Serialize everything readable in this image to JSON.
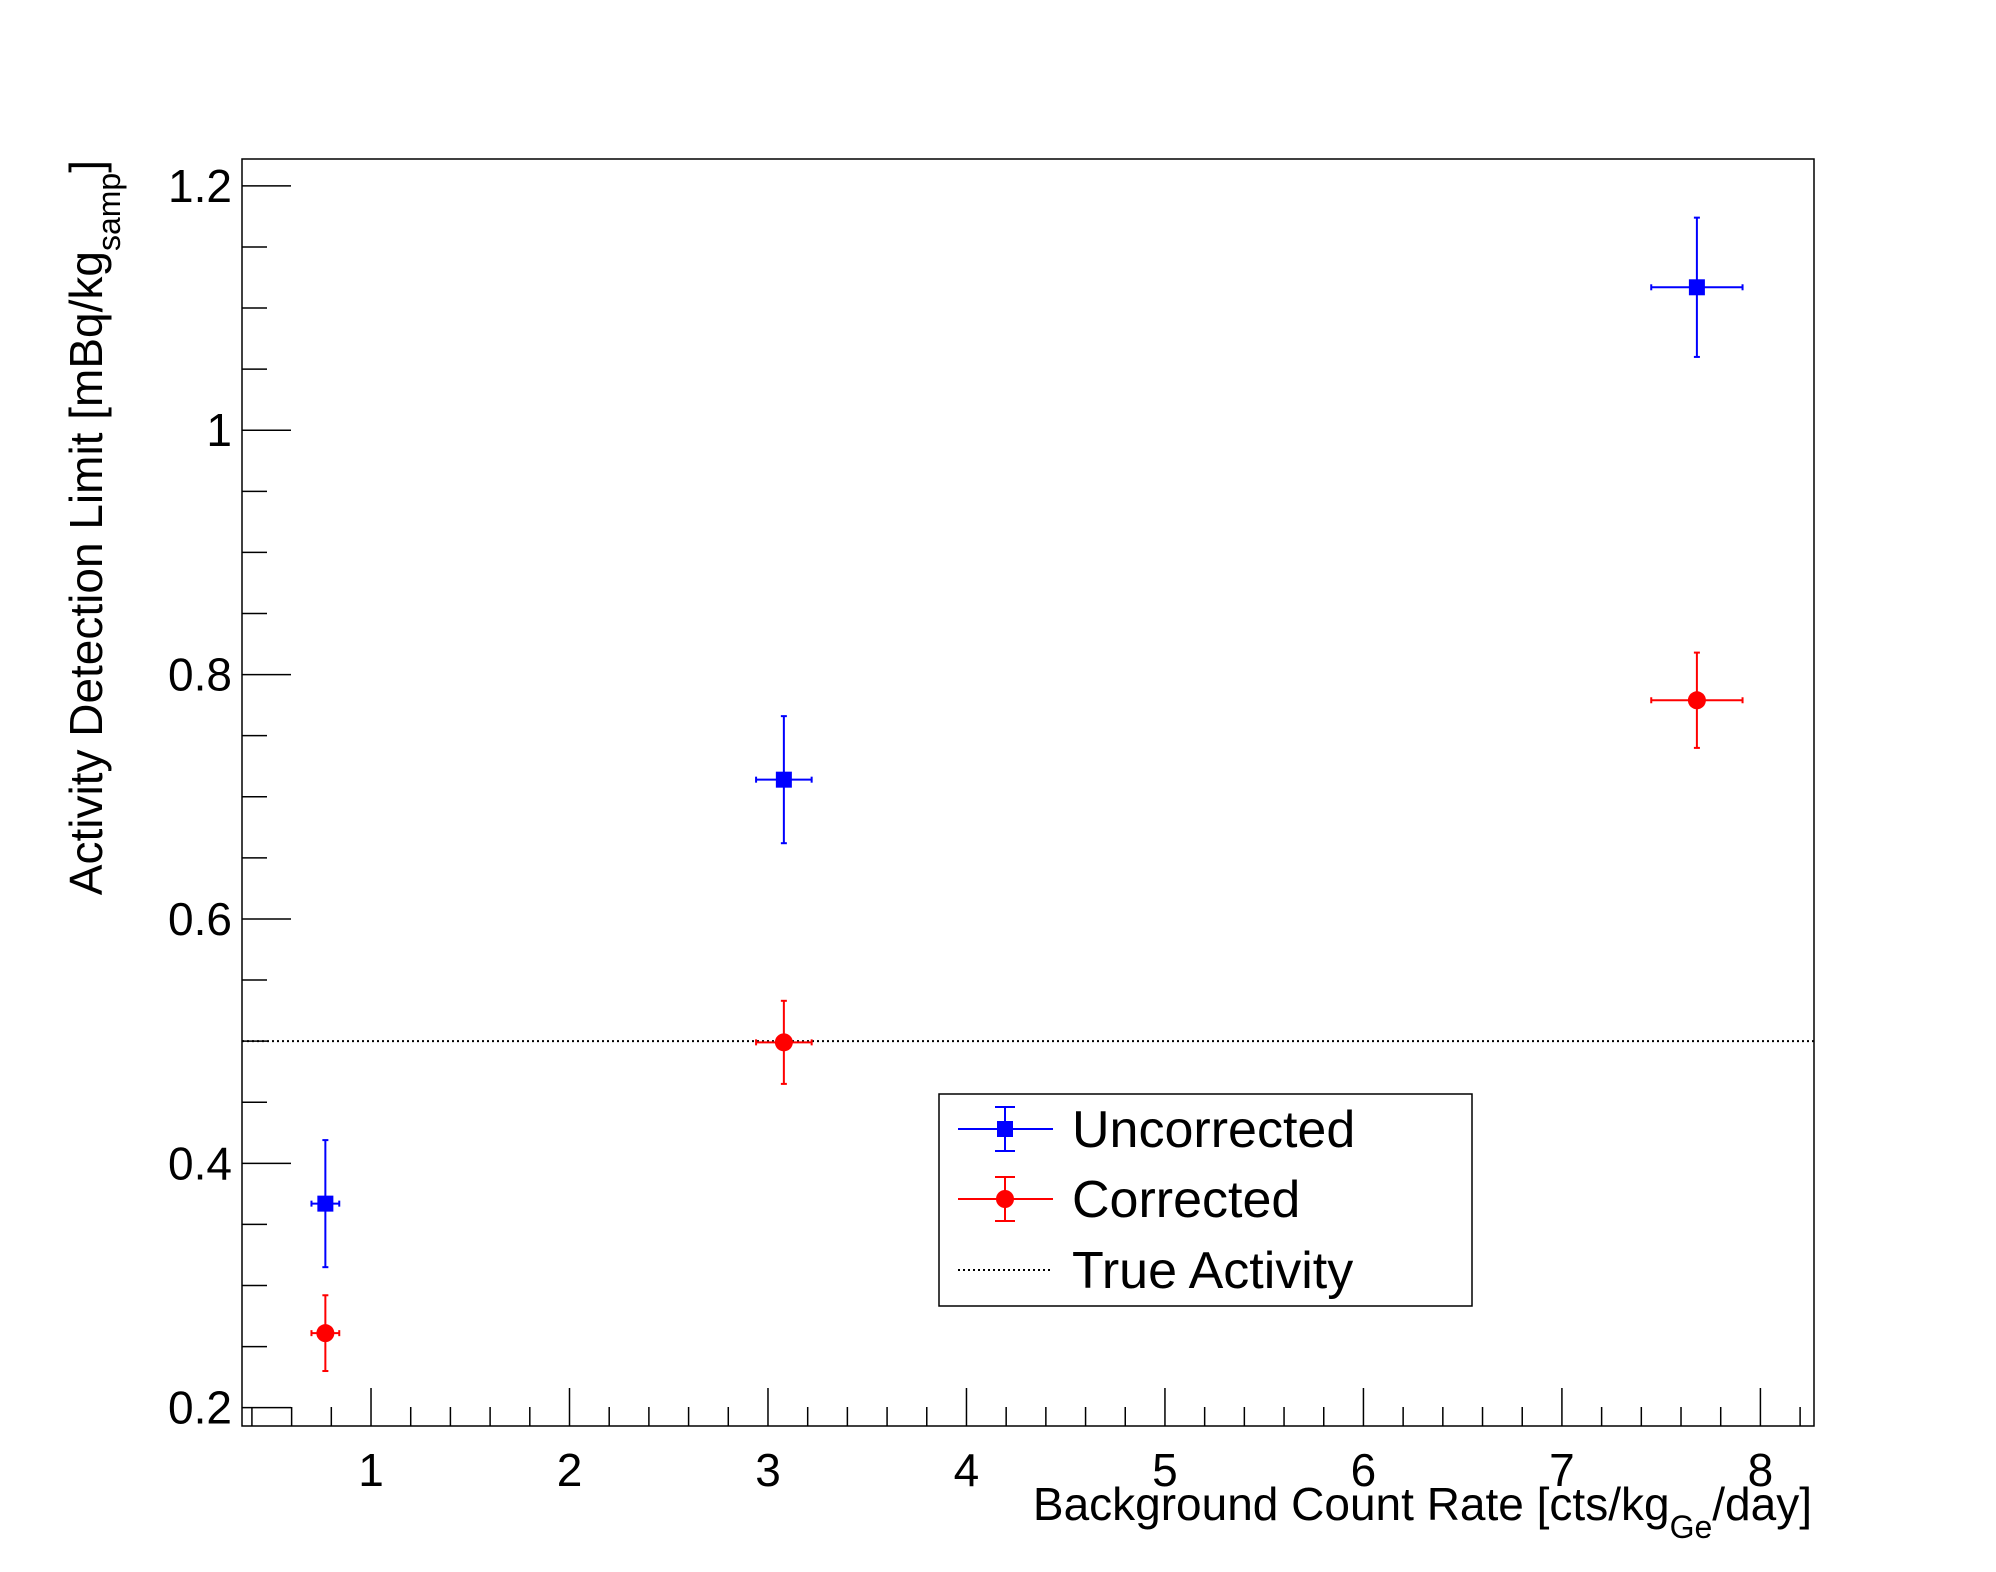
{
  "chart_data": {
    "type": "scatter",
    "xlabel": "Background Count Rate [cts/kg",
    "xlabel_sub": "Ge",
    "xlabel_end": "/day]",
    "ylabel": "Activity Detection Limit [mBq/kg",
    "ylabel_sub": "samp",
    "ylabel_end": "]",
    "xlim": [
      0.35,
      8.27
    ],
    "ylim": [
      0.185,
      1.222
    ],
    "grid": false,
    "legend_position": "lower-center",
    "x_ticks": [
      "1",
      "2",
      "3",
      "4",
      "5",
      "6",
      "7",
      "8"
    ],
    "y_ticks": [
      "0.2",
      "0.4",
      "0.6",
      "0.8",
      "1",
      "1.2"
    ],
    "series": [
      {
        "name": "Uncorrected",
        "color": "#0000ff",
        "marker": "square",
        "points": [
          {
            "x": 0.77,
            "y": 0.367,
            "xerr": 0.07,
            "yerr": 0.052
          },
          {
            "x": 3.08,
            "y": 0.714,
            "xerr": 0.14,
            "yerr": 0.052
          },
          {
            "x": 7.68,
            "y": 1.117,
            "xerr": 0.23,
            "yerr": 0.057
          }
        ]
      },
      {
        "name": "Corrected",
        "color": "#ff0000",
        "marker": "circle",
        "points": [
          {
            "x": 0.77,
            "y": 0.261,
            "xerr": 0.07,
            "yerr": 0.031
          },
          {
            "x": 3.08,
            "y": 0.499,
            "xerr": 0.14,
            "yerr": 0.034
          },
          {
            "x": 7.68,
            "y": 0.779,
            "xerr": 0.23,
            "yerr": 0.039
          }
        ]
      }
    ],
    "reference_line": {
      "name": "True Activity",
      "y": 0.5,
      "style": "dotted",
      "color": "#000000"
    }
  }
}
